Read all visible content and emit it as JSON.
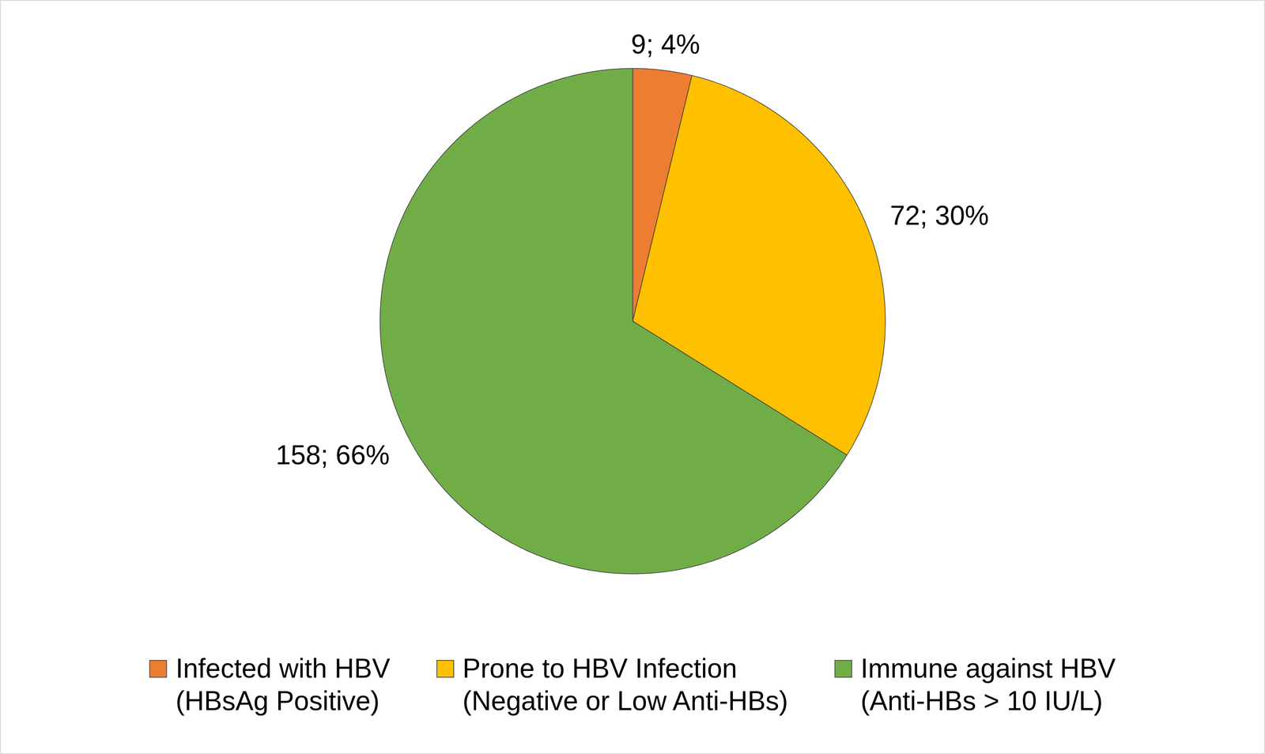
{
  "chart_data": {
    "type": "pie",
    "categories": [
      "Infected with HBV\n(HBsAg Positive)",
      "Prone to HBV Infection\n(Negative or Low Anti-HBs)",
      "Immune against HBV\n(Anti-HBs > 10 IU/L)"
    ],
    "values": [
      9,
      72,
      158
    ],
    "value_labels": [
      "9; 4%",
      "72; 30%",
      "158; 66%"
    ],
    "colors": [
      "#ed7d31",
      "#ffc000",
      "#70ad47"
    ],
    "data_labels": true,
    "legend": "bottom"
  }
}
